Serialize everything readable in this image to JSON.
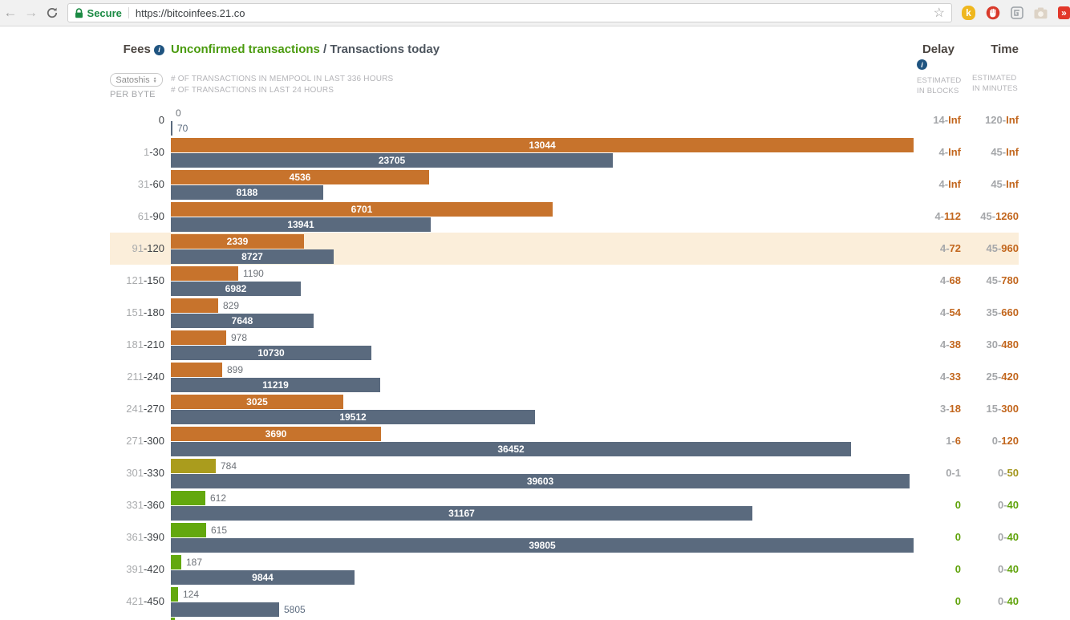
{
  "browser": {
    "url": "https://bitcoinfees.21.co",
    "secure_label": "Secure",
    "icons": [
      "back-arrow",
      "forward-arrow",
      "reload",
      "padlock",
      "bookmark-star",
      "k-extension",
      "stop-hand-extension",
      "square-extension",
      "camera-extension",
      "forward-red-extension"
    ]
  },
  "header": {
    "fees_label": "Fees",
    "title_green": "Unconfirmed transactions",
    "title_sep": " / ",
    "title_rest": "Transactions today",
    "delay_label": "Delay",
    "delay_sub1": "ESTIMATED",
    "delay_sub2": "IN BLOCKS",
    "time_label": "Time",
    "time_sub1": "ESTIMATED",
    "time_sub2": "IN MINUTES"
  },
  "controls": {
    "unit_select": "Satoshis",
    "unit_sub": "PER BYTE",
    "legend_mempool": "# OF TRANSACTIONS IN MEMPOOL IN LAST 336 HOURS",
    "legend_day": "# OF TRANSACTIONS IN LAST 24 HOURS"
  },
  "chart_data": {
    "type": "bar",
    "orientation": "horizontal",
    "title": "Unconfirmed transactions / Transactions today",
    "xlabel": "Satoshis per byte (fee ranges)",
    "series": [
      {
        "name": "# of transactions in mempool in last 336 hours",
        "colors": [
          "#c7732c",
          "#aa9c1d",
          "#63a80e"
        ]
      },
      {
        "name": "# of transactions in last 24 hours",
        "color": "#5a6a7e"
      }
    ],
    "legend_position": "top",
    "grid": false,
    "rows": [
      {
        "fee_a": "",
        "fee_b": "0",
        "mempool": 0,
        "day": 70,
        "mempool_color": "orange",
        "delay": {
          "pre": "14-",
          "post": "Inf",
          "color": "orange"
        },
        "time": {
          "pre": "120-",
          "post": "Inf",
          "color": "orange"
        }
      },
      {
        "fee_a": "1",
        "fee_b": "-30",
        "mempool": 13044,
        "day": 23705,
        "mempool_color": "orange",
        "delay": {
          "pre": "4-",
          "post": "Inf",
          "color": "orange"
        },
        "time": {
          "pre": "45-",
          "post": "Inf",
          "color": "orange"
        }
      },
      {
        "fee_a": "31",
        "fee_b": "-60",
        "mempool": 4536,
        "day": 8188,
        "mempool_color": "orange",
        "delay": {
          "pre": "4-",
          "post": "Inf",
          "color": "orange"
        },
        "time": {
          "pre": "45-",
          "post": "Inf",
          "color": "orange"
        }
      },
      {
        "fee_a": "61",
        "fee_b": "-90",
        "mempool": 6701,
        "day": 13941,
        "mempool_color": "orange",
        "delay": {
          "pre": "4-",
          "post": "112",
          "color": "orange"
        },
        "time": {
          "pre": "45-",
          "post": "1260",
          "color": "orange"
        }
      },
      {
        "fee_a": "91",
        "fee_b": "-120",
        "mempool": 2339,
        "day": 8727,
        "mempool_color": "orange",
        "highlight": true,
        "delay": {
          "pre": "4-",
          "post": "72",
          "color": "orange"
        },
        "time": {
          "pre": "45-",
          "post": "960",
          "color": "orange"
        }
      },
      {
        "fee_a": "121",
        "fee_b": "-150",
        "mempool": 1190,
        "day": 6982,
        "mempool_color": "orange",
        "delay": {
          "pre": "4-",
          "post": "68",
          "color": "orange"
        },
        "time": {
          "pre": "45-",
          "post": "780",
          "color": "orange"
        }
      },
      {
        "fee_a": "151",
        "fee_b": "-180",
        "mempool": 829,
        "day": 7648,
        "mempool_color": "orange",
        "delay": {
          "pre": "4-",
          "post": "54",
          "color": "orange"
        },
        "time": {
          "pre": "35-",
          "post": "660",
          "color": "orange"
        }
      },
      {
        "fee_a": "181",
        "fee_b": "-210",
        "mempool": 978,
        "day": 10730,
        "mempool_color": "orange",
        "delay": {
          "pre": "4-",
          "post": "38",
          "color": "orange"
        },
        "time": {
          "pre": "30-",
          "post": "480",
          "color": "orange"
        }
      },
      {
        "fee_a": "211",
        "fee_b": "-240",
        "mempool": 899,
        "day": 11219,
        "mempool_color": "orange",
        "delay": {
          "pre": "4-",
          "post": "33",
          "color": "orange"
        },
        "time": {
          "pre": "25-",
          "post": "420",
          "color": "orange"
        }
      },
      {
        "fee_a": "241",
        "fee_b": "-270",
        "mempool": 3025,
        "day": 19512,
        "mempool_color": "orange",
        "delay": {
          "pre": "3-",
          "post": "18",
          "color": "orange"
        },
        "time": {
          "pre": "15-",
          "post": "300",
          "color": "orange"
        }
      },
      {
        "fee_a": "271",
        "fee_b": "-300",
        "mempool": 3690,
        "day": 36452,
        "mempool_color": "orange",
        "delay": {
          "pre": "1-",
          "post": "6",
          "color": "orange"
        },
        "time": {
          "pre": "0-",
          "post": "120",
          "color": "orange"
        }
      },
      {
        "fee_a": "301",
        "fee_b": "-330",
        "mempool": 784,
        "day": 39603,
        "mempool_color": "olive",
        "delay": {
          "pre": "0-",
          "post": "1",
          "color": "gray"
        },
        "time": {
          "pre": "0-",
          "post": "50",
          "color": "olive"
        }
      },
      {
        "fee_a": "331",
        "fee_b": "-360",
        "mempool": 612,
        "day": 31167,
        "mempool_color": "green",
        "delay": {
          "pre": "",
          "post": "0",
          "color": "green"
        },
        "time": {
          "pre": "0-",
          "post": "40",
          "color": "green"
        }
      },
      {
        "fee_a": "361",
        "fee_b": "-390",
        "mempool": 615,
        "day": 39805,
        "mempool_color": "green",
        "delay": {
          "pre": "",
          "post": "0",
          "color": "green"
        },
        "time": {
          "pre": "0-",
          "post": "40",
          "color": "green"
        }
      },
      {
        "fee_a": "391",
        "fee_b": "-420",
        "mempool": 187,
        "day": 9844,
        "mempool_color": "green",
        "delay": {
          "pre": "",
          "post": "0",
          "color": "green"
        },
        "time": {
          "pre": "0-",
          "post": "40",
          "color": "green"
        }
      },
      {
        "fee_a": "421",
        "fee_b": "-450",
        "mempool": 124,
        "day": 5805,
        "mempool_color": "green",
        "delay": {
          "pre": "",
          "post": "0",
          "color": "green"
        },
        "time": {
          "pre": "0-",
          "post": "40",
          "color": "green"
        }
      },
      {
        "partial": true,
        "mempool_color": "green"
      }
    ]
  }
}
